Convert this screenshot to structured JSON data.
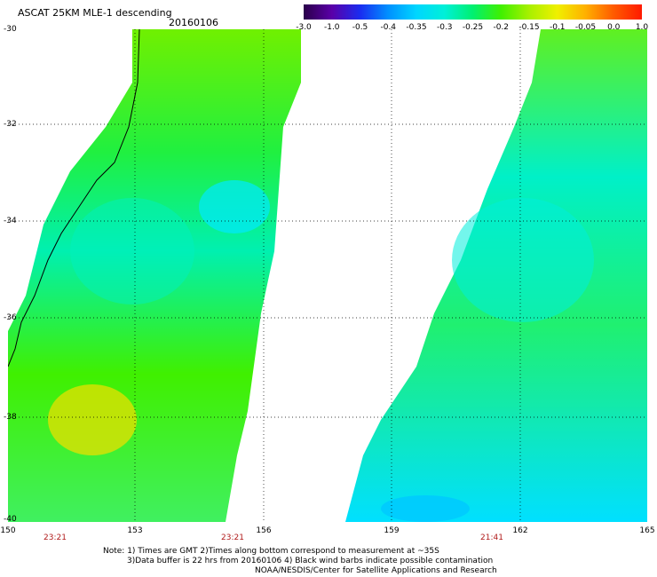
{
  "header": {
    "title": "ASCAT 25KM MLE-1 descending",
    "date": "20160106"
  },
  "colorbar": {
    "ticks": [
      "-3.0",
      "-1.0",
      "-0.5",
      "-0.4",
      "-0.35",
      "-0.3",
      "-0.25",
      "-0.2",
      "-0.15",
      "-0.1",
      "-0.05",
      "0.0",
      "1.0"
    ],
    "colors": [
      "#2a004a",
      "#5a00a8",
      "#1a2cf0",
      "#0090ff",
      "#00d6ff",
      "#00f0d8",
      "#00f070",
      "#40f000",
      "#a8f000",
      "#f0f000",
      "#ffb000",
      "#ff5a00",
      "#ff1a00"
    ]
  },
  "axes": {
    "lat_labels": [
      "-30",
      "-32",
      "-34",
      "-36",
      "-38",
      "-40"
    ],
    "lon_labels": [
      "150",
      "153",
      "156",
      "159",
      "162",
      "165"
    ],
    "time_labels": [
      "23:21",
      "23:21",
      "21:41"
    ]
  },
  "notes": {
    "line1": "Note: 1) Times are GMT 2)Times along bottom correspond to measurement at ~35S",
    "line2": "3)Data buffer is 22 hrs from 20160106 4) Black wind barbs indicate possible contamination",
    "line3": "NOAA/NESDIS/Center for Satellite Applications and Research"
  }
}
